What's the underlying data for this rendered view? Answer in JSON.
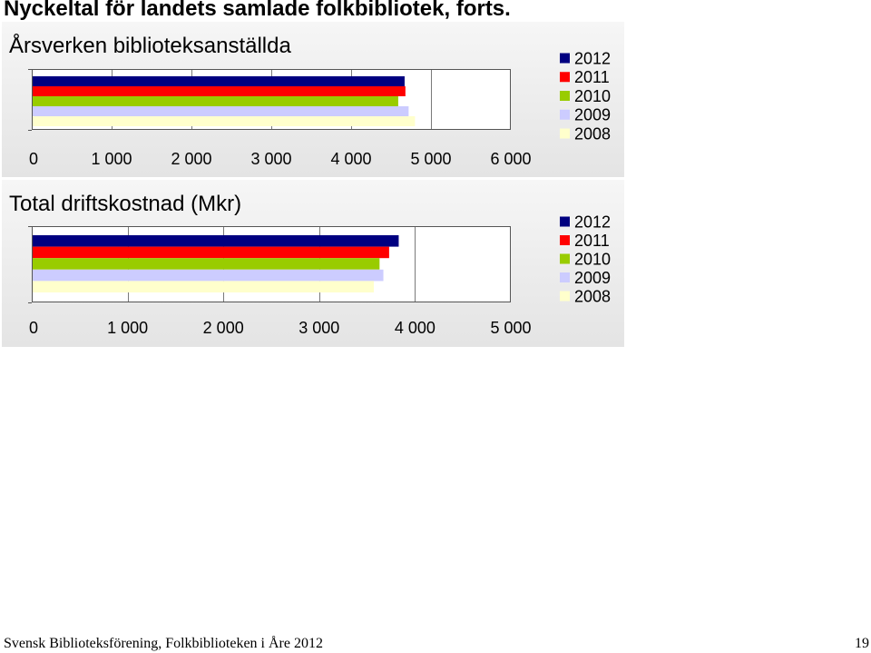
{
  "page": {
    "title": "Nyckeltal för landets samlade folkbibliotek, forts."
  },
  "chart_data": [
    {
      "type": "bar",
      "orientation": "horizontal",
      "title": "Årsverken biblioteksanställda",
      "xlim": [
        0,
        6000
      ],
      "xticks": [
        0,
        1000,
        2000,
        3000,
        4000,
        5000,
        6000
      ],
      "xtick_labels": [
        "0",
        "1 000",
        "2 000",
        "3 000",
        "4 000",
        "5 000",
        "6 000"
      ],
      "grid": true,
      "legend": "right",
      "series": [
        {
          "name": "2012",
          "values": [
            4670
          ],
          "color": "#000080"
        },
        {
          "name": "2011",
          "values": [
            4680
          ],
          "color": "#ff0000"
        },
        {
          "name": "2010",
          "values": [
            4590
          ],
          "color": "#99cc00"
        },
        {
          "name": "2009",
          "values": [
            4720
          ],
          "color": "#ccccff"
        },
        {
          "name": "2008",
          "values": [
            4800
          ],
          "color": "#ffffcc"
        }
      ]
    },
    {
      "type": "bar",
      "orientation": "horizontal",
      "title": "Total driftskostnad (Mkr)",
      "xlim": [
        0,
        5000
      ],
      "xticks": [
        0,
        1000,
        2000,
        3000,
        4000,
        5000
      ],
      "xtick_labels": [
        "0",
        "1 000",
        "2 000",
        "3 000",
        "4 000",
        "5 000"
      ],
      "grid": true,
      "legend": "right",
      "series": [
        {
          "name": "2012",
          "values": [
            3830
          ],
          "color": "#000080"
        },
        {
          "name": "2011",
          "values": [
            3730
          ],
          "color": "#ff0000"
        },
        {
          "name": "2010",
          "values": [
            3630
          ],
          "color": "#99cc00"
        },
        {
          "name": "2009",
          "values": [
            3670
          ],
          "color": "#ccccff"
        },
        {
          "name": "2008",
          "values": [
            3570
          ],
          "color": "#ffffcc"
        }
      ]
    }
  ],
  "footer": {
    "text": "Svensk Biblioteksförening, Folkbiblioteken i Åre 2012",
    "page_number": "19"
  }
}
